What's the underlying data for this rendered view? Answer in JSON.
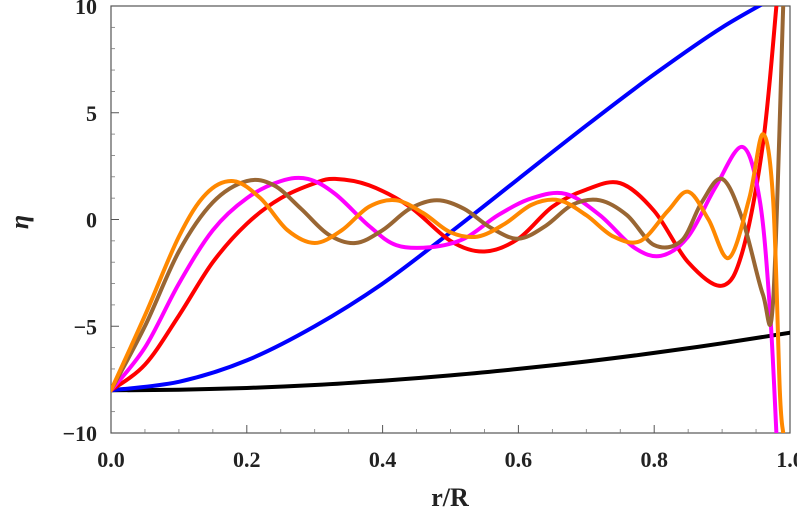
{
  "chart_data": {
    "type": "line",
    "title": "",
    "xlabel": "r/R",
    "ylabel": "η",
    "xlim": [
      0,
      1
    ],
    "ylim": [
      -10,
      10
    ],
    "x_ticks": [
      0.0,
      0.2,
      0.4,
      0.6,
      0.8,
      1.0
    ],
    "x_tick_labels": [
      "0.0",
      "0.2",
      "0.4",
      "0.6",
      "0.8",
      "1.0"
    ],
    "y_ticks": [
      -10,
      -5,
      0,
      5,
      10
    ],
    "y_tick_labels": [
      "−10",
      "−5",
      "0",
      "5",
      "10"
    ],
    "grid": false,
    "legend": "none",
    "series": [
      {
        "name": "black",
        "color": "#000000",
        "x": [
          0,
          0.1,
          0.2,
          0.3,
          0.4,
          0.5,
          0.6,
          0.7,
          0.8,
          0.9,
          1.0
        ],
        "y": [
          -8.0,
          -7.97,
          -7.89,
          -7.75,
          -7.55,
          -7.3,
          -7.0,
          -6.65,
          -6.25,
          -5.8,
          -5.3
        ]
      },
      {
        "name": "blue",
        "color": "#0000ff",
        "x": [
          0,
          0.1,
          0.2,
          0.3,
          0.4,
          0.5,
          0.6,
          0.7,
          0.8,
          0.9,
          1.0
        ],
        "y": [
          -8.0,
          -7.6,
          -6.6,
          -5.0,
          -3.0,
          -0.6,
          1.9,
          4.4,
          6.8,
          9.0,
          10.8
        ]
      },
      {
        "name": "red",
        "color": "#ff0000",
        "x": [
          0,
          0.05,
          0.1,
          0.15,
          0.2,
          0.25,
          0.3,
          0.33,
          0.38,
          0.44,
          0.5,
          0.55,
          0.6,
          0.65,
          0.7,
          0.75,
          0.8,
          0.85,
          0.9,
          0.93,
          0.96,
          0.98
        ],
        "y": [
          -8.0,
          -6.8,
          -4.5,
          -2.0,
          -0.2,
          1.0,
          1.7,
          1.9,
          1.6,
          0.6,
          -1.0,
          -1.5,
          -0.9,
          0.6,
          1.4,
          1.7,
          0.4,
          -2.0,
          -3.1,
          -1.5,
          3.5,
          10.0
        ]
      },
      {
        "name": "magenta",
        "color": "#ff00ff",
        "x": [
          0,
          0.05,
          0.1,
          0.15,
          0.2,
          0.25,
          0.29,
          0.33,
          0.38,
          0.42,
          0.47,
          0.52,
          0.57,
          0.62,
          0.67,
          0.72,
          0.77,
          0.81,
          0.85,
          0.89,
          0.93,
          0.955,
          0.97,
          0.98
        ],
        "y": [
          -8.0,
          -6.0,
          -3.0,
          -0.5,
          1.0,
          1.8,
          1.9,
          1.2,
          -0.3,
          -1.2,
          -1.3,
          -0.9,
          0.2,
          1.0,
          1.2,
          0.2,
          -1.3,
          -1.7,
          -0.8,
          1.5,
          3.4,
          1.0,
          -4.0,
          -10.0
        ]
      },
      {
        "name": "brown",
        "color": "#996633",
        "x": [
          0,
          0.05,
          0.1,
          0.15,
          0.2,
          0.24,
          0.28,
          0.32,
          0.36,
          0.4,
          0.44,
          0.48,
          0.52,
          0.56,
          0.6,
          0.64,
          0.68,
          0.72,
          0.76,
          0.8,
          0.84,
          0.87,
          0.9,
          0.93,
          0.96,
          0.975,
          0.99
        ],
        "y": [
          -8.0,
          -5.0,
          -1.5,
          0.8,
          1.8,
          1.6,
          0.5,
          -0.7,
          -1.1,
          -0.5,
          0.5,
          0.9,
          0.5,
          -0.4,
          -0.9,
          -0.3,
          0.7,
          0.9,
          0.2,
          -1.2,
          -1.0,
          0.8,
          1.9,
          0.0,
          -3.5,
          -3.9,
          10.0
        ]
      },
      {
        "name": "orange",
        "color": "#ff8800",
        "x": [
          0,
          0.05,
          0.1,
          0.14,
          0.18,
          0.22,
          0.26,
          0.3,
          0.34,
          0.38,
          0.42,
          0.46,
          0.5,
          0.54,
          0.58,
          0.62,
          0.66,
          0.7,
          0.74,
          0.78,
          0.82,
          0.85,
          0.88,
          0.91,
          0.94,
          0.96,
          0.975,
          0.985,
          0.99
        ],
        "y": [
          -8.0,
          -4.5,
          -0.8,
          1.2,
          1.8,
          1.0,
          -0.5,
          -1.1,
          -0.5,
          0.6,
          0.9,
          0.3,
          -0.6,
          -0.8,
          -0.2,
          0.7,
          0.9,
          0.2,
          -0.8,
          -1.0,
          0.4,
          1.3,
          0.0,
          -1.8,
          1.0,
          4.0,
          1.0,
          -8.0,
          -10.0
        ]
      }
    ]
  }
}
